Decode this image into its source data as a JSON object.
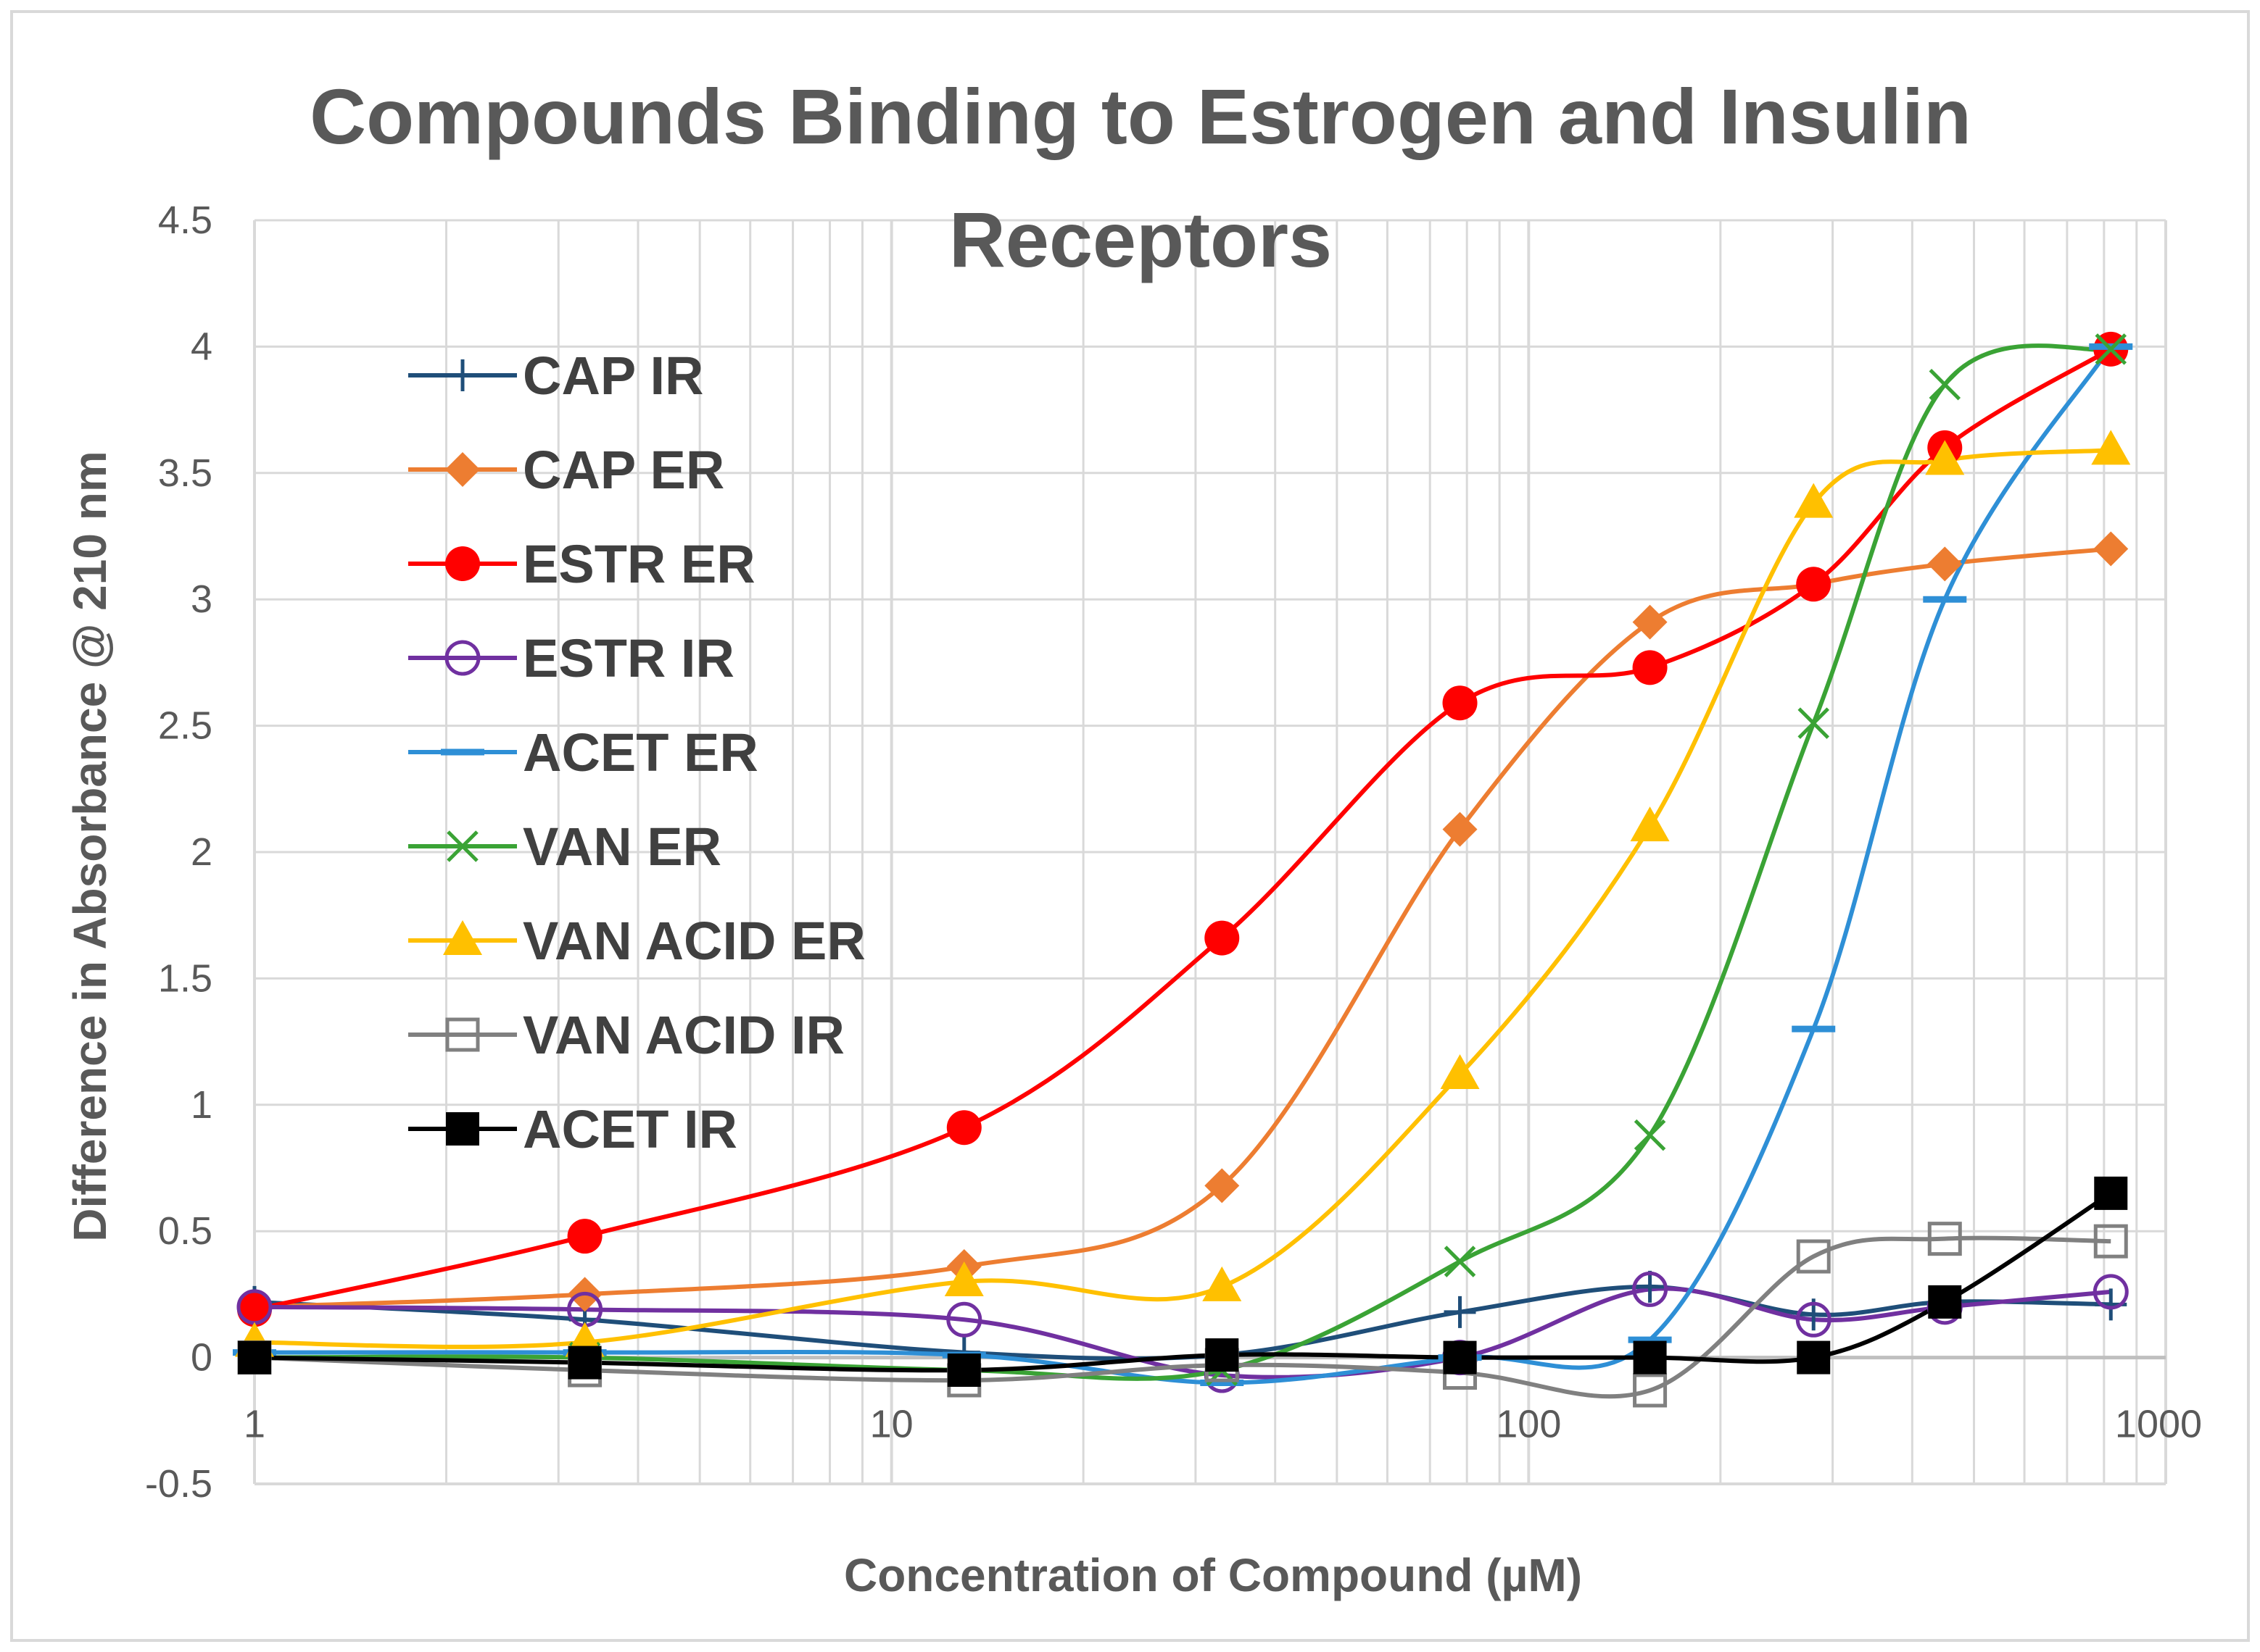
{
  "chart_data": {
    "type": "line",
    "title_lines": [
      "Compounds Binding to Estrogen and Insulin",
      "Receptors"
    ],
    "xlabel": "Concentration of Compound (µM)",
    "ylabel": "Difference in Absorbance @ 210 nm",
    "x_scale": "log",
    "xlim": [
      1,
      1000
    ],
    "ylim": [
      -0.5,
      4.5
    ],
    "x_ticks": [
      1,
      10,
      100,
      1000
    ],
    "x_tick_labels": [
      "1",
      "10",
      "100",
      "1000"
    ],
    "y_ticks": [
      -0.5,
      0,
      0.5,
      1,
      1.5,
      2,
      2.5,
      3,
      3.5,
      4,
      4.5
    ],
    "y_tick_labels": [
      "-0.5",
      "0",
      "0.5",
      "1",
      "1.5",
      "2",
      "2.5",
      "3",
      "3.5",
      "4",
      "4.5"
    ],
    "grid": true,
    "legend_position": "upper-left",
    "x": [
      1,
      3.3,
      13,
      33,
      78,
      155,
      280,
      450,
      820
    ],
    "series": [
      {
        "name": "CAP IR",
        "color": "#1f4e79",
        "marker": "plus",
        "values": [
          0.22,
          0.15,
          0.02,
          0.01,
          0.18,
          0.28,
          0.17,
          0.22,
          0.21
        ]
      },
      {
        "name": "CAP ER",
        "color": "#ed7d31",
        "marker": "diamond",
        "values": [
          0.2,
          0.25,
          0.36,
          0.68,
          2.09,
          2.91,
          3.06,
          3.14,
          3.2
        ]
      },
      {
        "name": "ESTR ER",
        "color": "#ff0000",
        "marker": "circle",
        "values": [
          0.19,
          0.48,
          0.91,
          1.66,
          2.59,
          2.73,
          3.06,
          3.6,
          3.99
        ]
      },
      {
        "name": "ESTR IR",
        "color": "#7030a0",
        "marker": "circle-open",
        "values": [
          0.2,
          0.19,
          0.15,
          -0.07,
          0.0,
          0.27,
          0.15,
          0.2,
          0.26
        ]
      },
      {
        "name": "ACET ER",
        "color": "#2e8fd6",
        "marker": "dash",
        "values": [
          0.02,
          0.02,
          0.01,
          -0.1,
          0.0,
          0.07,
          1.3,
          3.0,
          4.0
        ]
      },
      {
        "name": "VAN ER",
        "color": "#3aa335",
        "marker": "x",
        "values": [
          0.0,
          0.0,
          -0.05,
          -0.05,
          0.38,
          0.88,
          2.51,
          3.85,
          3.99
        ]
      },
      {
        "name": "VAN ACID ER",
        "color": "#ffc000",
        "marker": "triangle",
        "values": [
          0.06,
          0.06,
          0.3,
          0.28,
          1.12,
          2.1,
          3.38,
          3.55,
          3.59
        ]
      },
      {
        "name": "VAN ACID IR",
        "color": "#808080",
        "marker": "square-open",
        "values": [
          0.0,
          -0.05,
          -0.09,
          -0.03,
          -0.06,
          -0.13,
          0.4,
          0.47,
          0.46
        ]
      },
      {
        "name": "ACET IR",
        "color": "#000000",
        "marker": "square",
        "values": [
          0.0,
          -0.02,
          -0.05,
          0.01,
          0.0,
          0.0,
          0.0,
          0.22,
          0.65
        ]
      }
    ]
  }
}
